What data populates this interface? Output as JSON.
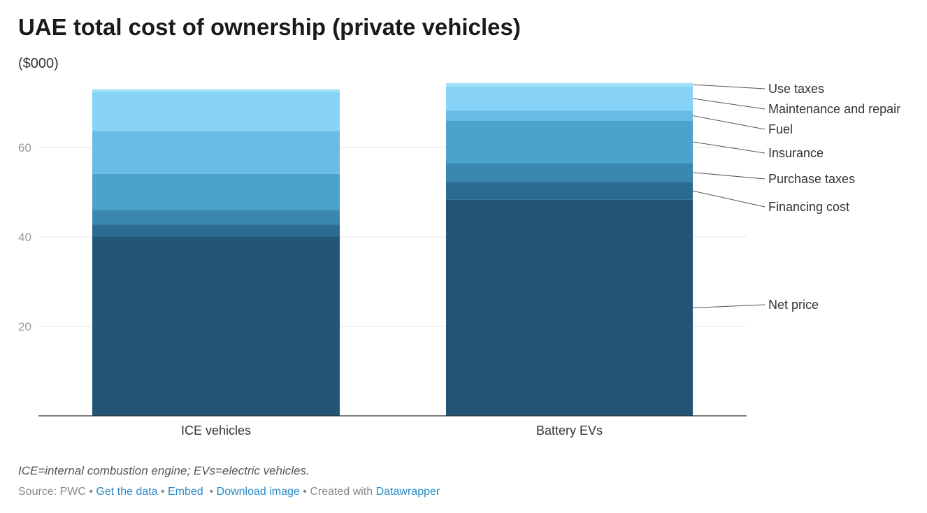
{
  "header": {
    "title": "UAE total cost of ownership (private vehicles)",
    "subtitle": "($000)"
  },
  "chart_data": {
    "type": "bar",
    "stacked": true,
    "categories": [
      "ICE vehicles",
      "Battery EVs"
    ],
    "ylim": [
      0,
      75
    ],
    "yticks": [
      20,
      40,
      60
    ],
    "grid": true,
    "legend": "right (direct labels)",
    "series": [
      {
        "name": "Net price",
        "values": [
          40,
          48.3
        ],
        "color": "#235577"
      },
      {
        "name": "Financing cost",
        "values": [
          2.8,
          4.0
        ],
        "color": "#2b6b91"
      },
      {
        "name": "Purchase taxes",
        "values": [
          3.2,
          4.2
        ],
        "color": "#3a87b0"
      },
      {
        "name": "Insurance",
        "values": [
          8.1,
          9.5
        ],
        "color": "#4ba2cc"
      },
      {
        "name": "Fuel",
        "values": [
          9.6,
          2.2
        ],
        "color": "#6bbce4"
      },
      {
        "name": "Maintenance and repair",
        "values": [
          8.7,
          5.5
        ],
        "color": "#86d3f7"
      },
      {
        "name": "Use taxes",
        "values": [
          0.6,
          0.7
        ],
        "color": "#a2e2fb"
      }
    ]
  },
  "notes": "ICE=internal combustion engine; EVs=electric vehicles.",
  "footer": {
    "source": "Source: PWC",
    "get_data": "Get the data",
    "embed": "Embed",
    "download": "Download image",
    "created_with": "Created with",
    "datawrapper": "Datawrapper"
  }
}
